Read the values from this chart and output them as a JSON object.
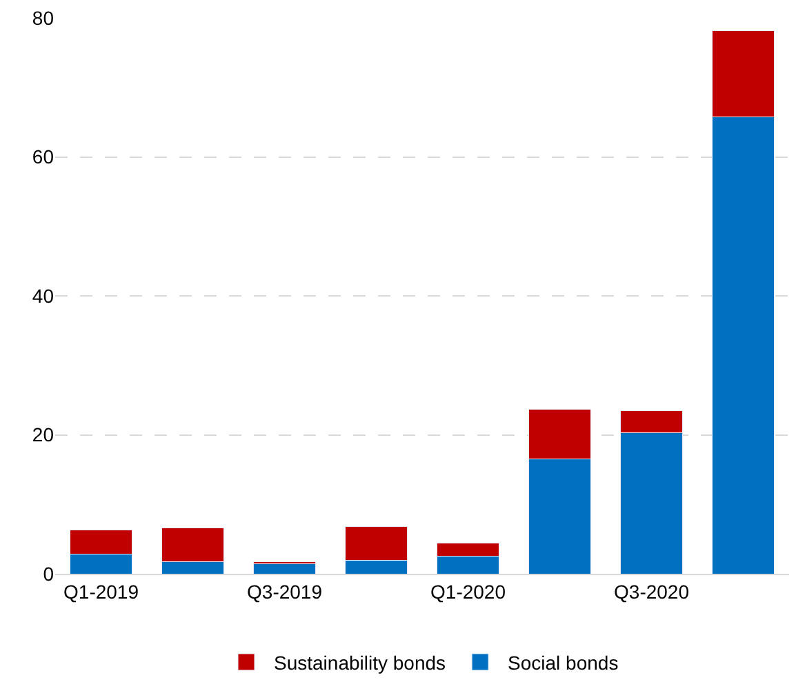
{
  "chart_data": {
    "type": "bar",
    "stacked": true,
    "categories": [
      "Q1-2019",
      null,
      "Q3-2019",
      null,
      "Q1-2020",
      null,
      "Q3-2020",
      null
    ],
    "series": [
      {
        "name": "Social bonds",
        "color": "#0070c0",
        "values": [
          2.8,
          1.7,
          1.4,
          1.9,
          2.5,
          16.5,
          20.3,
          65.8
        ]
      },
      {
        "name": "Sustainability bonds",
        "color": "#c00000",
        "values": [
          3.5,
          4.9,
          0.3,
          4.9,
          1.9,
          7.2,
          3.2,
          12.4
        ]
      }
    ],
    "ylim": [
      0,
      80
    ],
    "yticks": [
      0,
      20,
      40,
      60,
      80
    ],
    "grid": "y",
    "legend": "bottom"
  }
}
